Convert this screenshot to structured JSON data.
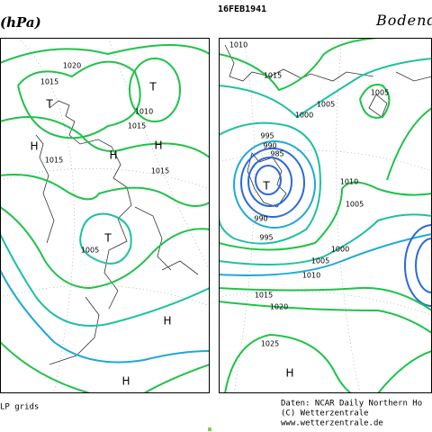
{
  "date": "16FEB1941",
  "left_panel": {
    "title": "(hPa)",
    "footer": "LP grids",
    "labels": [
      "1020",
      "1015",
      "T",
      "1010",
      "T",
      "1015",
      "H",
      "H",
      "H",
      "1015",
      "1015",
      "T",
      "1005",
      "H",
      "H"
    ]
  },
  "right_panel": {
    "title": "Bodend",
    "footer": [
      "Daten: NCAR Daily Northern Ho",
      "(C) Wetterzentrale",
      "www.wetterzentrale.de"
    ],
    "labels": [
      "1010",
      "1015",
      "1005",
      "1000",
      "1005",
      "995",
      "990",
      "985",
      "T",
      "990",
      "995",
      "1010",
      "1005",
      "1000",
      "1005",
      "1010",
      "1015",
      "1020",
      "1025",
      "H"
    ]
  }
}
